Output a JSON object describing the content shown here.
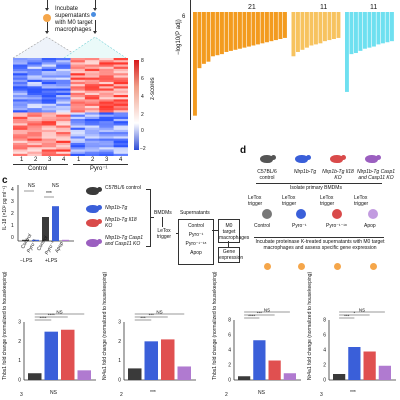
{
  "panel_a": {
    "incubate_text": "Incubate supernatants with M0 target macrophages",
    "zscore_label": "z-scores",
    "zscore_ticks": [
      "8",
      "6",
      "4",
      "2",
      "0",
      "−2"
    ],
    "column_numbers": [
      "1",
      "2",
      "3",
      "4",
      "1",
      "2",
      "3",
      "4"
    ],
    "group_control": "Control",
    "group_pyro": "Pyro⁻¹"
  },
  "panel_b": {
    "ylabel": "−log10(P adj)",
    "y_tick": "6",
    "counts": [
      "21",
      "11",
      "11"
    ],
    "colors": {
      "orange": "#f39b1f",
      "yellow": "#f7c35f",
      "cyan": "#6fe0f0"
    },
    "orange_values": [
      9.6,
      5.2,
      4.8,
      4.6,
      4.1,
      4.0,
      3.9,
      3.7,
      3.6,
      3.5,
      3.4,
      3.3,
      3.2,
      3.1,
      3.0,
      2.9,
      2.8,
      2.7,
      2.6,
      2.5,
      2.4
    ],
    "yellow_values": [
      4.1,
      3.7,
      3.5,
      3.3,
      3.1,
      3.0,
      2.9,
      2.7,
      2.6,
      2.5,
      2.4
    ],
    "cyan_values": [
      7.4,
      3.9,
      3.8,
      3.6,
      3.4,
      3.3,
      3.2,
      3.0,
      2.9,
      2.8,
      2.7
    ]
  },
  "panel_c": {
    "letter": "c",
    "ylabel": "IL-18 (×10² pg ml⁻¹)",
    "y_ticks": [
      "4",
      "3",
      "2",
      "1",
      "0"
    ],
    "ns": "NS",
    "sig3": "***",
    "xlabels": [
      "Control",
      "Pyro⁻¹",
      "Apop"
    ],
    "minus_lps": "−LPS",
    "plus_lps": "+LPS",
    "bar_values_minus": [
      0.1,
      0.1
    ],
    "bar_values_plus": [
      2.0,
      2.9
    ],
    "legend": [
      {
        "label": "C57BL/6 control",
        "color": "#3a3a3a"
      },
      {
        "label": "Nlrp1b-Tg",
        "color": "#3a5fd9"
      },
      {
        "label": "Nlrp1b-Tg Il18 KO",
        "color": "#d94a4a"
      },
      {
        "label": "Nlrp1b-Tg Casp1 and Casp11 KO",
        "color": "#9b5fc0"
      }
    ],
    "bmdms": "BMDMs",
    "letox": "LeTox trigger",
    "supernatants_title": "Supernatants",
    "supernatants": [
      "Control",
      "Pyro⁻¹",
      "Pyro⁻¹⁻¹⁸",
      "Apop"
    ],
    "m0_box": "M0 target macrophages",
    "gene_expr": "Gene expression"
  },
  "panel_d": {
    "letter": "d",
    "mice": [
      {
        "label": "C57BL/6 control",
        "color": "#555555"
      },
      {
        "label": "Nlrp1b-Tg",
        "color": "#3a5fd9"
      },
      {
        "label": "Nlrp1b-Tg Il18 KO",
        "color": "#d94a4a"
      },
      {
        "label": "Nlrp1b-Tg Casp1 and Casp11 KO",
        "color": "#9b5fc0"
      }
    ],
    "isolate": "Isolate primary BMDMs",
    "letox": "LeTox trigger",
    "conditions": [
      "Control",
      "Pyro⁻¹",
      "Pyro⁻¹⁻¹⁸",
      "Apop"
    ],
    "incubate": "Incubate proteinase K-treated supernatants with M0 target macrophages and assess specific gene expression"
  },
  "bottom_charts": [
    {
      "gene": "Thbs1",
      "ylabel": "Thbs1 fold change (normalized to housekeeping)",
      "y_ticks": [
        "3",
        "2",
        "1",
        "0"
      ],
      "values": [
        0.35,
        2.5,
        2.6,
        0.5
      ],
      "sig": [
        "****",
        "****",
        "NS"
      ]
    },
    {
      "gene": "Nr4a1",
      "ylabel": "Nr4a1 fold change (normalized to housekeeping)",
      "y_ticks": [
        "3",
        "2",
        "1",
        "0"
      ],
      "values": [
        0.6,
        2.0,
        2.1,
        0.7
      ],
      "sig": [
        "***",
        "***",
        "NS"
      ]
    },
    {
      "gene": "Thbs1",
      "ylabel": "Thbs1 fold change (normalized to housekeeping)",
      "y_ticks": [
        "8",
        "6",
        "4",
        "2",
        "0"
      ],
      "values": [
        0.5,
        5.3,
        2.6,
        0.9
      ],
      "sig": [
        "****",
        "***",
        "NS"
      ]
    },
    {
      "gene": "Nr4a1",
      "ylabel": "Nr4a1 fold change (normalized to housekeeping)",
      "y_ticks": [
        "8",
        "6",
        "4",
        "2",
        "0"
      ],
      "values": [
        0.8,
        4.4,
        3.8,
        1.9
      ],
      "sig": [
        "***",
        "*",
        "NS"
      ]
    }
  ],
  "bottom_row": {
    "ticks": [
      "3",
      "2",
      "2",
      "3"
    ],
    "sig": [
      "NS",
      "***",
      "NS",
      "***"
    ]
  },
  "bar_colors": [
    "#3a3a3a",
    "#3a5fd9",
    "#e05050",
    "#b07ad0"
  ]
}
